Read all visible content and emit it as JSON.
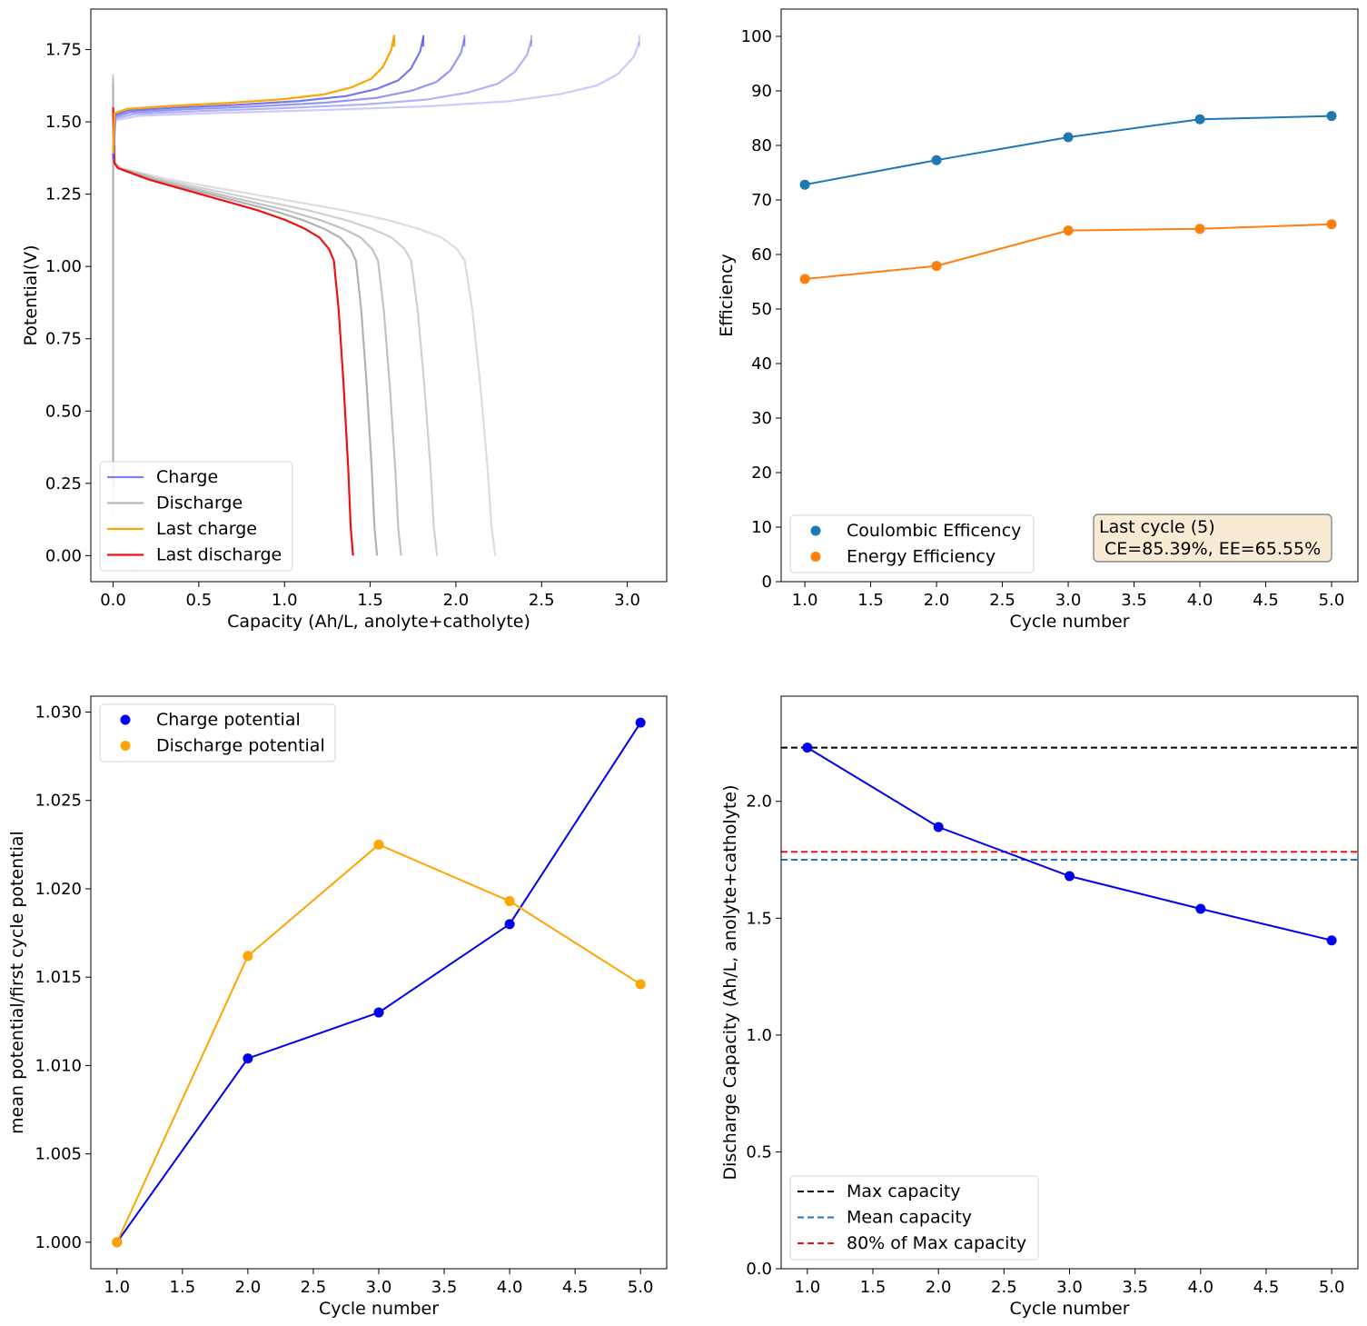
{
  "chart_data": [
    {
      "id": "voltage",
      "type": "line",
      "xlabel": "Capacity (Ah/L, anolyte+catholyte)",
      "ylabel": "Potential(V)",
      "xlim": [
        -0.13,
        3.23
      ],
      "ylim": [
        -0.09,
        1.89
      ],
      "xticks": [
        0.0,
        0.5,
        1.0,
        1.5,
        2.0,
        2.5,
        3.0
      ],
      "xtick_labels": [
        "0.0",
        "0.5",
        "1.0",
        "1.5",
        "2.0",
        "2.5",
        "3.0"
      ],
      "yticks": [
        0.0,
        0.25,
        0.5,
        0.75,
        1.0,
        1.25,
        1.5,
        1.75
      ],
      "ytick_labels": [
        "0.00",
        "0.25",
        "0.50",
        "0.75",
        "1.00",
        "1.25",
        "1.50",
        "1.75"
      ],
      "legend": [
        "Charge",
        "Discharge",
        "Last charge",
        "Last discharge"
      ],
      "legend_loc": "lower-left",
      "colors": {
        "charge": "#5555ee",
        "discharge": "#aaaaaa",
        "last_charge": "#ffa500",
        "last_discharge": "#ee1111"
      },
      "charge_capacity": [
        3.07,
        2.44,
        2.05,
        1.81,
        1.64
      ],
      "discharge_capacity": [
        2.23,
        1.89,
        1.68,
        1.54,
        1.4
      ],
      "charge_shape": {
        "capacity_fraction": [
          0,
          0.005,
          0.05,
          0.2,
          0.4,
          0.6,
          0.75,
          0.85,
          0.92,
          0.96,
          0.99,
          1.0
        ],
        "potential": [
          1.39,
          1.53,
          1.545,
          1.555,
          1.565,
          1.578,
          1.595,
          1.62,
          1.65,
          1.69,
          1.75,
          1.8
        ]
      },
      "discharge_shape": {
        "capacity_fraction": [
          0,
          0.003,
          0.02,
          0.15,
          0.3,
          0.45,
          0.6,
          0.72,
          0.8,
          0.86,
          0.9,
          0.92,
          0.94,
          0.96,
          0.98,
          0.99,
          1.0
        ],
        "potential": [
          1.55,
          1.36,
          1.34,
          1.3,
          1.265,
          1.23,
          1.195,
          1.16,
          1.13,
          1.1,
          1.06,
          1.02,
          0.85,
          0.6,
          0.3,
          0.1,
          0.0
        ]
      }
    },
    {
      "id": "efficiency",
      "type": "line",
      "xlabel": "Cycle number",
      "ylabel": "Efficiency",
      "xlim": [
        0.82,
        5.2
      ],
      "ylim": [
        0,
        105
      ],
      "xticks": [
        1.0,
        1.5,
        2.0,
        2.5,
        3.0,
        3.5,
        4.0,
        4.5,
        5.0
      ],
      "xtick_labels": [
        "1.0",
        "1.5",
        "2.0",
        "2.5",
        "3.0",
        "3.5",
        "4.0",
        "4.5",
        "5.0"
      ],
      "yticks": [
        0,
        10,
        20,
        30,
        40,
        50,
        60,
        70,
        80,
        90,
        100
      ],
      "ytick_labels": [
        "0",
        "10",
        "20",
        "30",
        "40",
        "50",
        "60",
        "70",
        "80",
        "90",
        "100"
      ],
      "x": [
        1,
        2,
        3,
        4,
        5
      ],
      "series": [
        {
          "name": "Coulombic Efficency",
          "values": [
            72.8,
            77.3,
            81.5,
            84.8,
            85.39
          ],
          "color": "#1f77b4"
        },
        {
          "name": "Energy Efficiency",
          "values": [
            55.5,
            57.9,
            64.4,
            64.7,
            65.55
          ],
          "color": "#ff7f0e"
        }
      ],
      "legend_loc": "lower-left",
      "annotation": {
        "line1": "Last cycle (5)",
        "line2": " CE=85.39%, EE=65.55%",
        "facecolor": "#f8ead3",
        "edgecolor": "#888888"
      }
    },
    {
      "id": "potential-ratio",
      "type": "line",
      "xlabel": "Cycle number",
      "ylabel": "mean potential/first cycle potential",
      "xlim": [
        0.8,
        5.2
      ],
      "ylim": [
        0.9985,
        1.0309
      ],
      "xticks": [
        1.0,
        1.5,
        2.0,
        2.5,
        3.0,
        3.5,
        4.0,
        4.5,
        5.0
      ],
      "xtick_labels": [
        "1.0",
        "1.5",
        "2.0",
        "2.5",
        "3.0",
        "3.5",
        "4.0",
        "4.5",
        "5.0"
      ],
      "yticks": [
        1.0,
        1.005,
        1.01,
        1.015,
        1.02,
        1.025,
        1.03
      ],
      "ytick_labels": [
        "1.000",
        "1.005",
        "1.010",
        "1.015",
        "1.020",
        "1.025",
        "1.030"
      ],
      "x": [
        1,
        2,
        3,
        4,
        5
      ],
      "series": [
        {
          "name": "Charge potential",
          "values": [
            1.0,
            1.0104,
            1.013,
            1.018,
            1.0294
          ],
          "color": "#0000ee"
        },
        {
          "name": "Discharge potential",
          "values": [
            1.0,
            1.0162,
            1.0225,
            1.0193,
            1.0146
          ],
          "color": "#ffa500"
        }
      ],
      "legend_loc": "upper-left"
    },
    {
      "id": "capacity",
      "type": "line",
      "xlabel": "Cycle number",
      "ylabel": "Discharge Capacity (Ah/L, anolyte+catholyte)",
      "xlim": [
        0.8,
        5.2
      ],
      "ylim": [
        0,
        2.45
      ],
      "xticks": [
        1.0,
        1.5,
        2.0,
        2.5,
        3.0,
        3.5,
        4.0,
        4.5,
        5.0
      ],
      "xtick_labels": [
        "1.0",
        "1.5",
        "2.0",
        "2.5",
        "3.0",
        "3.5",
        "4.0",
        "4.5",
        "5.0"
      ],
      "yticks": [
        0,
        0.5,
        1.0,
        1.5,
        2.0
      ],
      "ytick_labels": [
        "0.0",
        "0.5",
        "1.0",
        "1.5",
        "2.0"
      ],
      "x": [
        1,
        2,
        3,
        4,
        5
      ],
      "series": [
        {
          "name": "Discharge capacity",
          "values": [
            2.23,
            1.89,
            1.68,
            1.54,
            1.405
          ],
          "color": "#0000ee"
        }
      ],
      "hlines": [
        {
          "name": "Max capacity",
          "value": 2.23,
          "color": "#000000"
        },
        {
          "name": "Mean capacity",
          "value": 1.75,
          "color": "#1f77b4"
        },
        {
          "name": "80% of Max capacity",
          "value": 1.784,
          "color": "#ee1111"
        }
      ],
      "legend_loc": "lower-left"
    }
  ]
}
